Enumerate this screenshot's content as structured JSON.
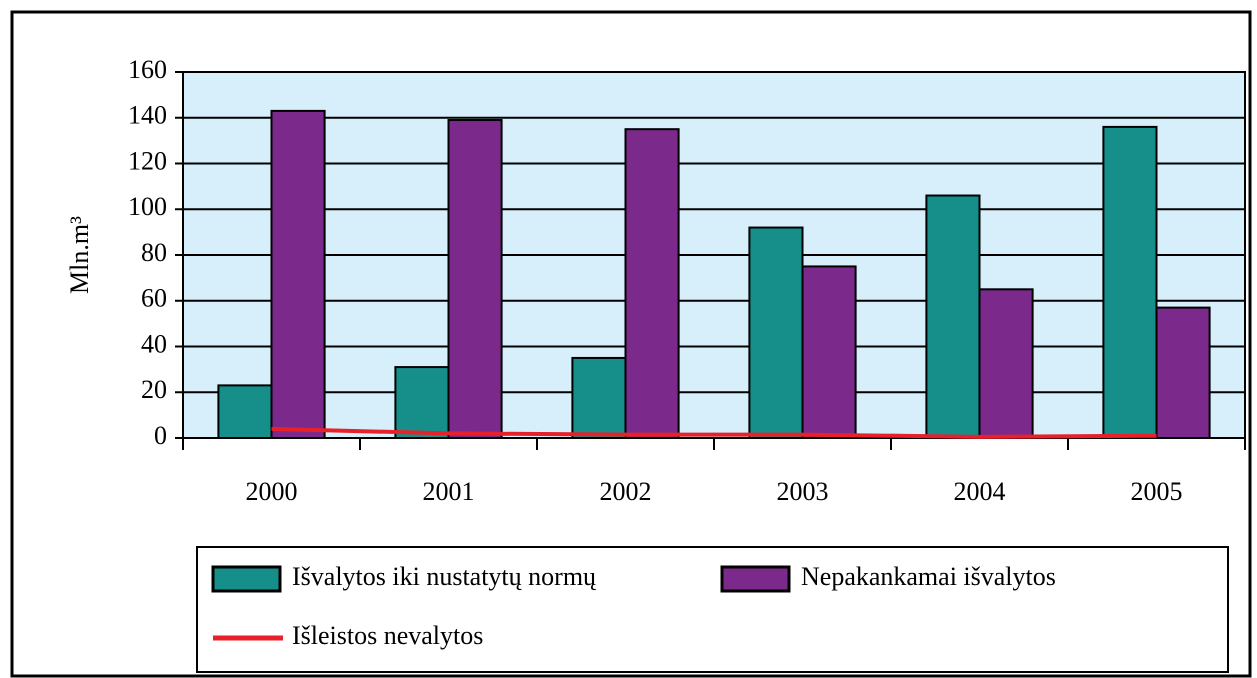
{
  "chart_data": {
    "type": "bar",
    "ylabel": "Mln.m³",
    "categories": [
      "2000",
      "2001",
      "2002",
      "2003",
      "2004",
      "2005"
    ],
    "series": [
      {
        "name": "Išvalytos iki nustatytų normų",
        "color": "#168f8a",
        "values": [
          23,
          31,
          35,
          92,
          106,
          136
        ]
      },
      {
        "name": "Nepakankamai išvalytos",
        "color": "#7b2a8c",
        "values": [
          143,
          139,
          135,
          75,
          65,
          57
        ]
      },
      {
        "name": "Išleistos nevalytos",
        "color": "#e8202a",
        "type": "line",
        "values": [
          4,
          2,
          1.5,
          1.5,
          0.5,
          1
        ]
      }
    ],
    "ylim": [
      0,
      160
    ],
    "yticks": [
      0,
      20,
      40,
      60,
      80,
      100,
      120,
      140,
      160
    ],
    "grid": true,
    "background": "#d6effa"
  }
}
